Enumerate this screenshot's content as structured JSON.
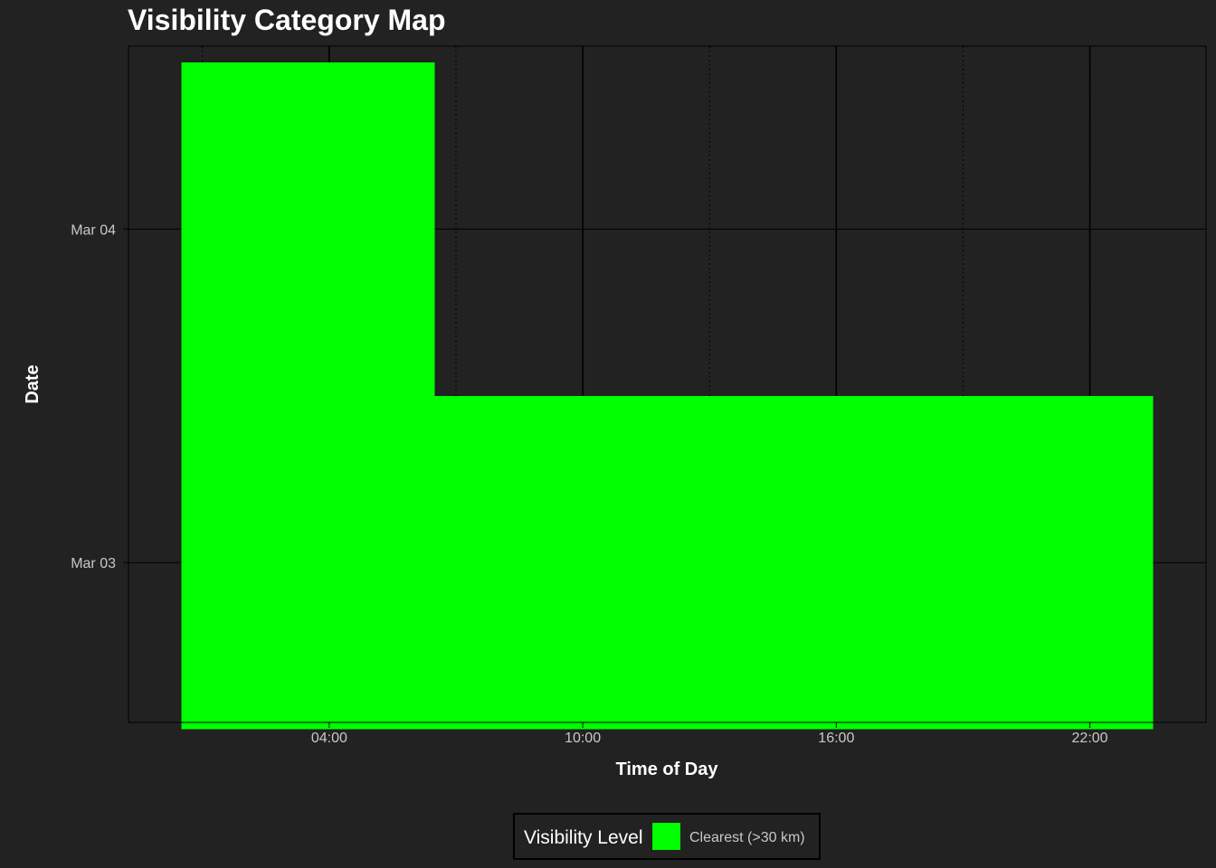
{
  "colors": {
    "background": "#222222",
    "panel": "#222222",
    "grid_major": "#000000",
    "grid_minor": "#000000",
    "border": "#000000",
    "clearest": "#00ff00"
  },
  "chart_data": {
    "type": "heatmap",
    "title": "Visibility Category Map",
    "xlabel": "Time of Day",
    "ylabel": "Date",
    "x_ticks": [
      "04:00",
      "10:00",
      "16:00",
      "22:00"
    ],
    "x_tick_hours": [
      4,
      10,
      16,
      22
    ],
    "xlim": [
      -0.75,
      24.75
    ],
    "y_ticks": [
      "Mar 03",
      "Mar 04"
    ],
    "ylim": [
      "Mar 02 12:30",
      "Mar 04 13:10"
    ],
    "grid": true,
    "legend": {
      "title": "Visibility Level",
      "position": "bottom",
      "entries": [
        {
          "label": "Clearest (>30 km)",
          "color": "#00ff00"
        }
      ]
    },
    "cells": [
      {
        "date": "Mar 03",
        "hour_start": 0.5,
        "hour_end": 23.5,
        "category": "Clearest (>30 km)"
      },
      {
        "date": "Mar 04",
        "hour_start": 0.5,
        "hour_end": 6.5,
        "category": "Clearest (>30 km)"
      }
    ]
  }
}
